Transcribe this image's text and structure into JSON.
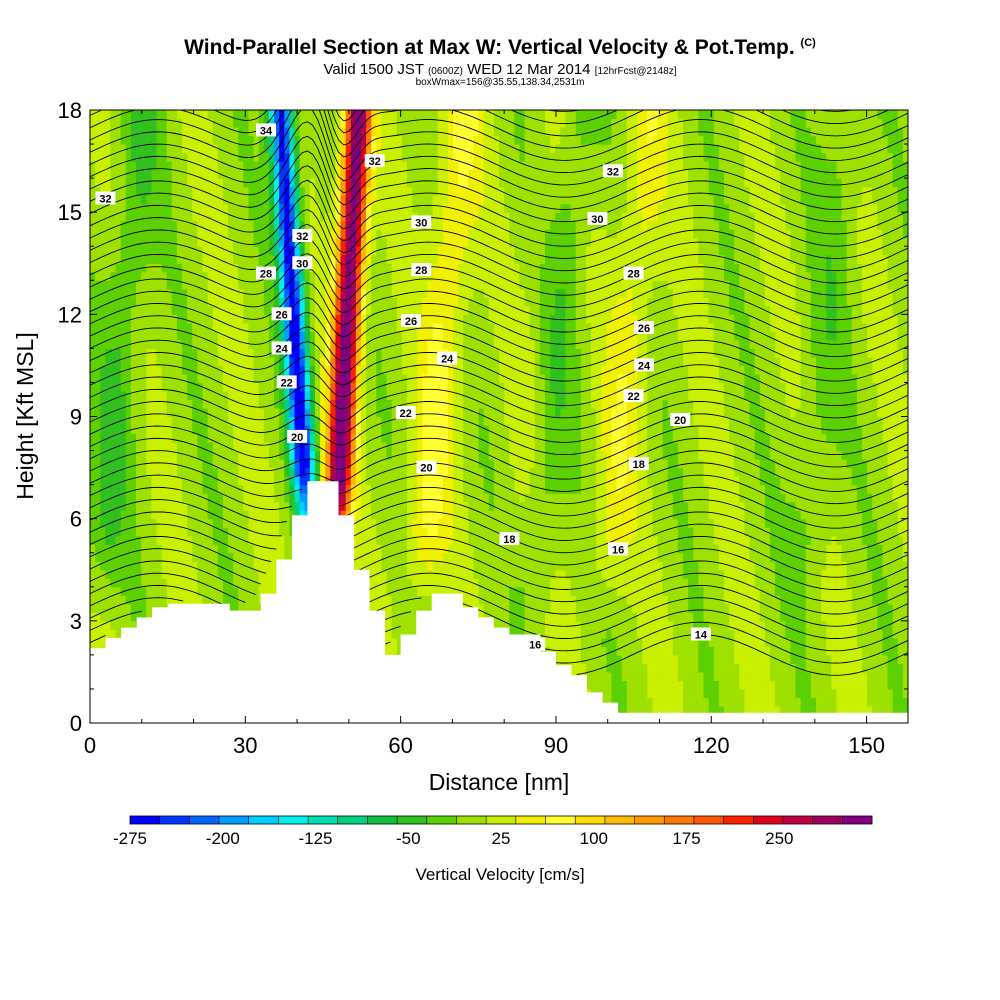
{
  "header": {
    "title": "Wind-Parallel Section at Max W: Vertical Velocity & Pot.Temp.",
    "title_unit": "(C)",
    "subtitle_a": "Valid 1500 JST",
    "subtitle_b": "(0600Z)",
    "subtitle_c": "WED 12 Mar 2014",
    "subtitle_d": "[12hrFcst@2148z]",
    "subtitle2": "boxWmax=156@35.55,138.34,2531m"
  },
  "chart_data": {
    "type": "heatmap",
    "title": "Wind-Parallel Section at Max W: Vertical Velocity & Pot.Temp. (C)",
    "xlabel": "Distance [nm]",
    "ylabel": "Height [Kft MSL]",
    "xlim": [
      0,
      158
    ],
    "ylim": [
      0,
      18
    ],
    "x_ticks": [
      0,
      30,
      60,
      90,
      120,
      150
    ],
    "y_ticks": [
      0,
      3,
      6,
      9,
      12,
      15,
      18
    ],
    "colorbar": {
      "label": "Vertical Velocity [cm/s]",
      "tick_labels": [
        "-275",
        "-200",
        "-125",
        "-50",
        "25",
        "100",
        "175",
        "250"
      ],
      "tick_values": [
        -275,
        -200,
        -125,
        -50,
        25,
        100,
        175,
        250
      ],
      "range": [
        -275,
        325
      ],
      "colors": [
        "#0000ff",
        "#0035ff",
        "#0068ff",
        "#009cff",
        "#00cfff",
        "#00f0f0",
        "#00e0b0",
        "#00d080",
        "#10c040",
        "#30c020",
        "#5cd000",
        "#9ee000",
        "#c8f000",
        "#f0f000",
        "#ffff30",
        "#ffdd00",
        "#ffbb00",
        "#ff9900",
        "#ff7700",
        "#ff5500",
        "#ff2000",
        "#e00020",
        "#c00040",
        "#a00060",
        "#800080"
      ]
    },
    "velocity_features": [
      {
        "kind": "downdraft",
        "x_center": 41,
        "peak": -275
      },
      {
        "kind": "updraft",
        "x_center": 48,
        "peak": 325
      },
      {
        "kind": "updraft",
        "x_center": 65,
        "peak": 60
      },
      {
        "kind": "updraft",
        "x_center": 85,
        "peak": 70
      },
      {
        "kind": "downdraft",
        "x_center": 86,
        "peak": -90
      },
      {
        "kind": "updraft",
        "x_center": 101,
        "peak": 45
      },
      {
        "kind": "downdraft",
        "x_center": 3,
        "peak": -40
      },
      {
        "kind": "downdraft",
        "x_center": 139,
        "peak": -25
      }
    ],
    "terrain": {
      "x": [
        0,
        3,
        6,
        9,
        12,
        15,
        18,
        21,
        24,
        27,
        30,
        33,
        36,
        39,
        42,
        45,
        48,
        51,
        54,
        57,
        60,
        63,
        66,
        69,
        72,
        75,
        78,
        81,
        84,
        87,
        90,
        93,
        96,
        99,
        102,
        105,
        110,
        130,
        158
      ],
      "height": [
        2.2,
        2.5,
        2.8,
        3.1,
        3.4,
        3.5,
        3.5,
        3.5,
        3.5,
        3.3,
        3.3,
        3.8,
        4.8,
        6.1,
        7.1,
        7.1,
        6.1,
        4.5,
        3.3,
        2.0,
        2.6,
        3.3,
        3.8,
        3.8,
        3.4,
        3.1,
        2.8,
        2.6,
        2.6,
        2.1,
        1.7,
        1.4,
        0.9,
        0.6,
        0.3,
        0.3,
        0.3,
        0.3,
        0.3
      ]
    },
    "theta_contours": [
      {
        "value": 34,
        "label": "34",
        "label_x": 34,
        "label_y": 17.4
      },
      {
        "value": 32,
        "label": "32",
        "label_x": 55,
        "label_y": 16.5
      },
      {
        "value": 32,
        "label": "32",
        "label_x": 3,
        "label_y": 15.4
      },
      {
        "value": 32,
        "label": "32",
        "label_x": 101,
        "label_y": 16.2
      },
      {
        "value": 32,
        "label": "32",
        "label_x": 41,
        "label_y": 14.3
      },
      {
        "value": 30,
        "label": "30",
        "label_x": 64,
        "label_y": 14.7
      },
      {
        "value": 30,
        "label": "30",
        "label_x": 98,
        "label_y": 14.8
      },
      {
        "value": 30,
        "label": "30",
        "label_x": 41,
        "label_y": 13.5
      },
      {
        "value": 28,
        "label": "28",
        "label_x": 34,
        "label_y": 13.2
      },
      {
        "value": 28,
        "label": "28",
        "label_x": 64,
        "label_y": 13.3
      },
      {
        "value": 28,
        "label": "28",
        "label_x": 105,
        "label_y": 13.2
      },
      {
        "value": 26,
        "label": "26",
        "label_x": 37,
        "label_y": 12.0
      },
      {
        "value": 26,
        "label": "26",
        "label_x": 62,
        "label_y": 11.8
      },
      {
        "value": 26,
        "label": "26",
        "label_x": 107,
        "label_y": 11.6
      },
      {
        "value": 24,
        "label": "24",
        "label_x": 37,
        "label_y": 11.0
      },
      {
        "value": 24,
        "label": "24",
        "label_x": 69,
        "label_y": 10.7
      },
      {
        "value": 24,
        "label": "24",
        "label_x": 107,
        "label_y": 10.5
      },
      {
        "value": 22,
        "label": "22",
        "label_x": 38,
        "label_y": 10.0
      },
      {
        "value": 22,
        "label": "22",
        "label_x": 61,
        "label_y": 9.1
      },
      {
        "value": 22,
        "label": "22",
        "label_x": 105,
        "label_y": 9.6
      },
      {
        "value": 20,
        "label": "20",
        "label_x": 40,
        "label_y": 8.4
      },
      {
        "value": 20,
        "label": "20",
        "label_x": 65,
        "label_y": 7.5
      },
      {
        "value": 20,
        "label": "20",
        "label_x": 114,
        "label_y": 8.9
      },
      {
        "value": 18,
        "label": "18",
        "label_x": 81,
        "label_y": 5.4
      },
      {
        "value": 18,
        "label": "18",
        "label_x": 106,
        "label_y": 7.6
      },
      {
        "value": 16,
        "label": "16",
        "label_x": 86,
        "label_y": 2.3
      },
      {
        "value": 16,
        "label": "16",
        "label_x": 102,
        "label_y": 5.1
      },
      {
        "value": 14,
        "label": "14",
        "label_x": 118,
        "label_y": 2.6
      }
    ],
    "colors": {
      "background": "#c8f000",
      "contour_line": "#000000",
      "terrain_fill": "#ffffff"
    }
  }
}
